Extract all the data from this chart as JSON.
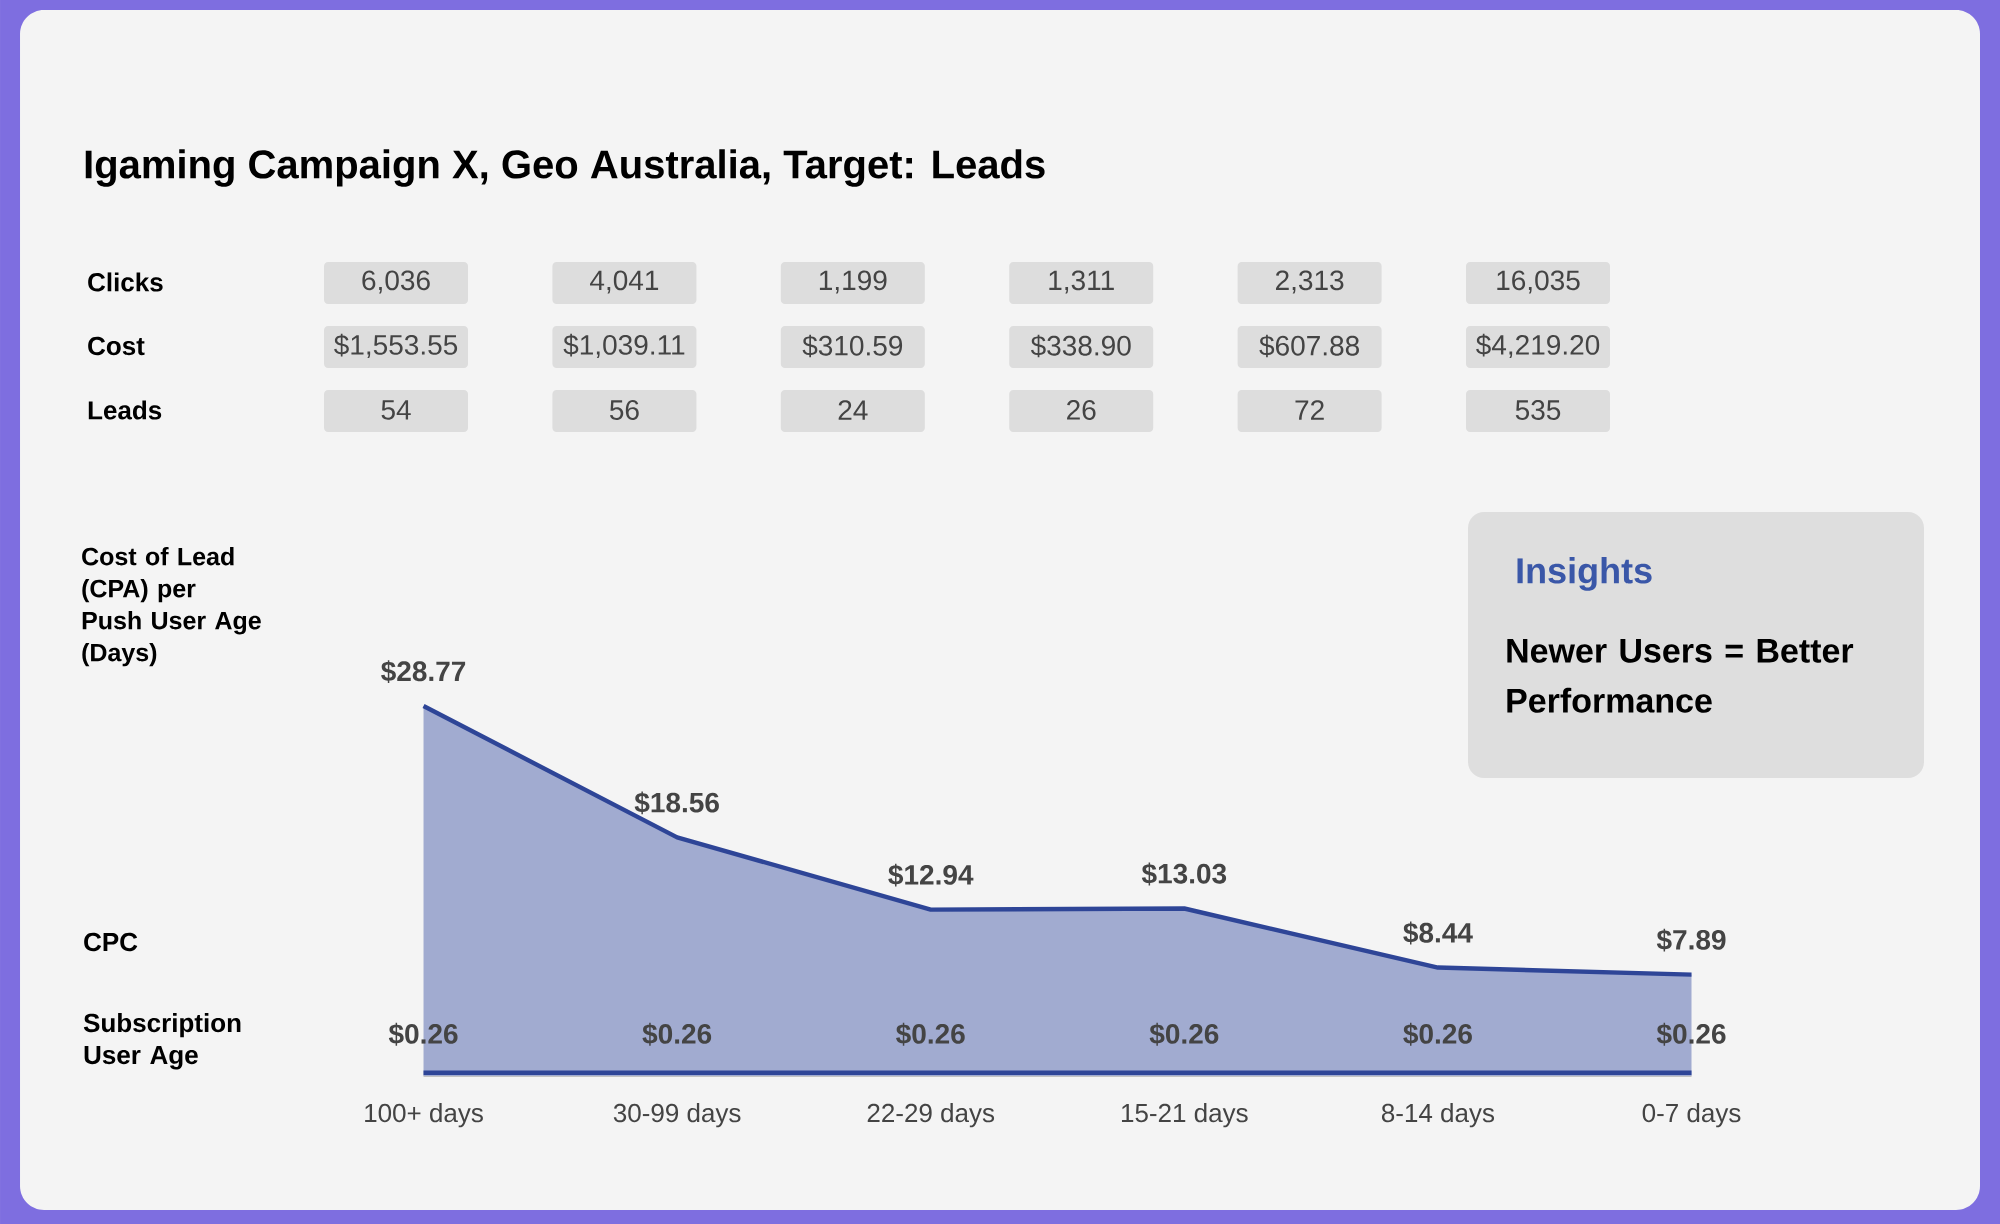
{
  "chart_data": {
    "type": "area",
    "title": "Igaming Campaign X, Geo Australia, Target: Leads",
    "categories": [
      "100+ days",
      "30-99 days",
      "22-29 days",
      "15-21 days",
      "8-14 days",
      "0-7 days"
    ],
    "series": [
      {
        "color": "#2e4597",
        "values": [
          28.77,
          18.56,
          12.94,
          13.03,
          8.44,
          7.89
        ],
        "value_labels": [
          "$28.77",
          "$18.56",
          "$12.94",
          "$13.03",
          "$8.44",
          "$7.89"
        ]
      },
      {
        "type": "line",
        "color": "#2e4597",
        "values": [
          0.26,
          0.26,
          0.26,
          0.26,
          0.26,
          0.26
        ],
        "value_labels": [
          "$0.26",
          "$0.26",
          "$0.26",
          "$0.26",
          "$0.26",
          "$0.26"
        ]
      }
    ],
    "ylabel": "Cost of Lead (CPA) per Push User Age (Days)",
    "tick_labels": "x",
    "annotations": [
      "Clicks",
      "6,036",
      "4,041",
      "1,199",
      "1,311",
      "2,313",
      "16,035",
      "Cost",
      "$1,553.55",
      "$1,039.11",
      "$310.59",
      "$338.90",
      "$607.88",
      "$4,219.20",
      "Leads",
      "54",
      "56",
      "24",
      "26",
      "72",
      "535",
      "Insights",
      "Newer Users = Better Performance",
      "Subscription User Age",
      "CPC"
    ]
  }
}
